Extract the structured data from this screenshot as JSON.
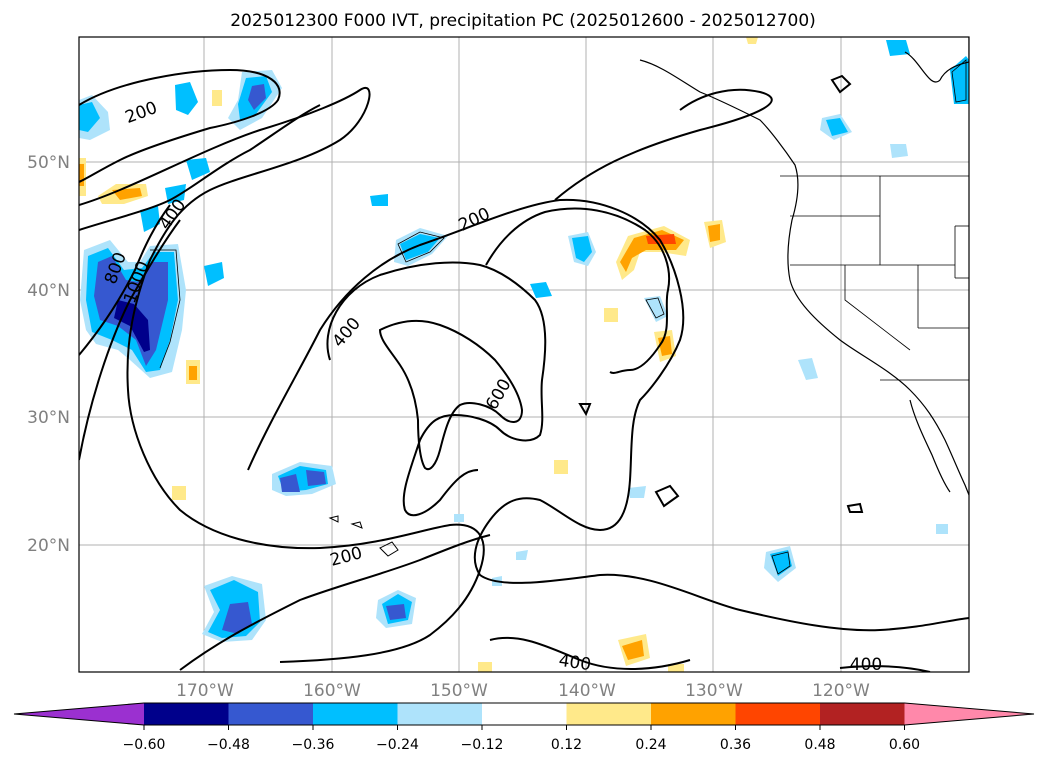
{
  "title": "2025012300 F000 IVT, precipitation PC (2025012600 - 2025012700)",
  "map": {
    "lat_labels": [
      "50°N",
      "40°N",
      "30°N",
      "20°N"
    ],
    "lon_labels": [
      "170°W",
      "160°W",
      "150°W",
      "140°W",
      "130°W",
      "120°W"
    ],
    "contour_labels": [
      {
        "name": "contour-label-200-nw",
        "text": "200",
        "rotate": -20
      },
      {
        "name": "contour-label-400-nw",
        "text": "400",
        "rotate": -55
      },
      {
        "name": "contour-label-800",
        "text": "800",
        "rotate": -70
      },
      {
        "name": "contour-label-1000",
        "text": "1000",
        "rotate": -70
      },
      {
        "name": "contour-label-200-center",
        "text": "200",
        "rotate": -25
      },
      {
        "name": "contour-label-400-center",
        "text": "400",
        "rotate": -50
      },
      {
        "name": "contour-label-600",
        "text": "600",
        "rotate": -60
      },
      {
        "name": "contour-label-200-south",
        "text": "200",
        "rotate": -15
      },
      {
        "name": "contour-label-400-south",
        "text": "400",
        "rotate": 8
      },
      {
        "name": "contour-label-400-se",
        "text": "400",
        "rotate": 0
      }
    ]
  },
  "colorbar": {
    "colors": [
      "#9b30d0",
      "#00008b",
      "#3658d0",
      "#00bfff",
      "#aee3fb",
      "#ffffff",
      "#ffe98a",
      "#ffa200",
      "#ff4500",
      "#b22222",
      "#ff88aa"
    ],
    "tick_labels": [
      "−0.60",
      "−0.48",
      "−0.36",
      "−0.24",
      "−0.12",
      "0.12",
      "0.24",
      "0.36",
      "0.48",
      "0.60"
    ]
  }
}
